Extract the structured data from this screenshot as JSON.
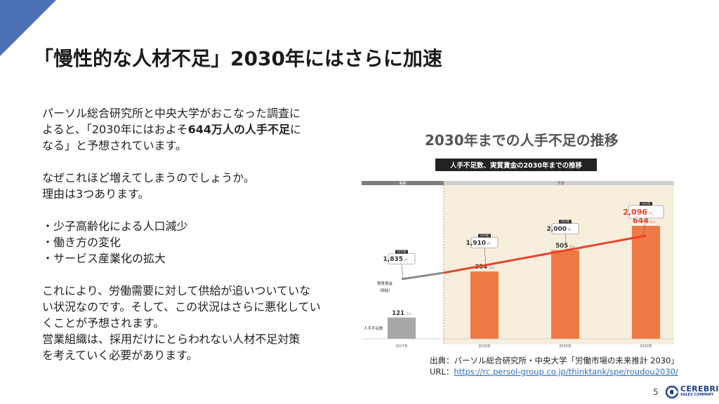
{
  "slide": {
    "title": "「慢性的な人材不足」2030年にはさらに加速",
    "page_number": "5"
  },
  "body": {
    "p1_a": "パーソル総合研究所と中央大学がおこなった調査に",
    "p1_b": "よると、「2030年にはおよそ",
    "p1_bold": "644万人の人手不足",
    "p1_c": "に",
    "p1_d": "なる」と予想されています。",
    "p2": "なぜこれほど増えてしまうのでしょうか。",
    "p3": "理由は3つあります。",
    "reason1": "・少子高齢化による人口減少",
    "reason2": "・働き方の変化",
    "reason3": "・サービス産業化の拡大",
    "p4_a": "これにより、労働需要に対して供給が追いついていな",
    "p4_b": "い状況なのです。そして、この状況はさらに悪化してい",
    "p4_c": "くことが予想されます。",
    "p5_a": "営業組織は、採用だけにとらわれない人材不足対策",
    "p5_b": "を考えていく必要があります。"
  },
  "source": {
    "label": "出典：パーソル総合研究所・中央大学「労働市場の未来推計 2030」",
    "url_label": "URL：",
    "url": "https://rc.persol-group.co.jp/thinktank/spe/roudou2030/"
  },
  "logo": {
    "name": "CEREBRIX",
    "sub": "SALES COMPANY"
  },
  "chart_data": {
    "type": "bar",
    "title": "2030年までの人手不足の推移",
    "subtitle": "人手不足数、実質賃金の2030年までの推移",
    "band_labels": {
      "actual": "実績",
      "forecast": "予測"
    },
    "categories": [
      "2017年",
      "2020年",
      "2025年",
      "2030年"
    ],
    "series": [
      {
        "name": "人手不足数",
        "values": [
          121,
          384,
          505,
          644
        ],
        "unit": "万人",
        "color_actual": "#a7a7a7",
        "color_forecast": "#ef7a45"
      },
      {
        "name": "実質賃金（時給）",
        "values": [
          1835,
          1910,
          2000,
          2096
        ],
        "unit": "円",
        "labels": [
          "1,835",
          "1,910",
          "2,000",
          "2,096"
        ]
      }
    ],
    "callout_years": [
      "2017年",
      "2020年",
      "2025年",
      "2030年"
    ],
    "wage_line_colors": {
      "actual": "#8a8a8a",
      "forecast": "#e8432b"
    },
    "forecast_bg": "#f8eedd",
    "highlight_color": "#e8432b",
    "grid": false
  }
}
